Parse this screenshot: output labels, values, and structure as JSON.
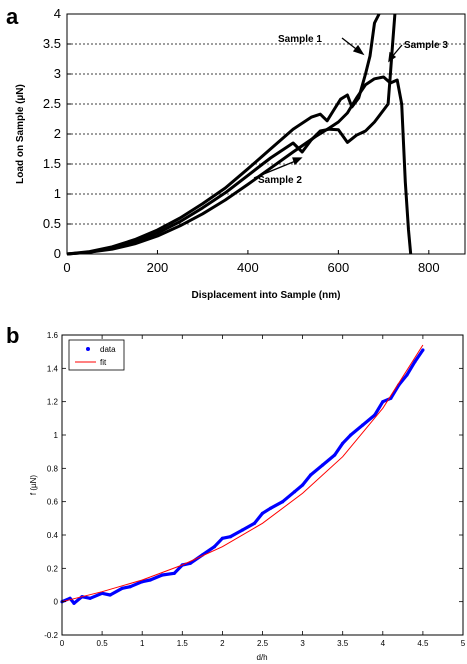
{
  "chart_data": [
    {
      "panel_label": "a",
      "type": "line",
      "xlabel": "Displacement into Sample (nm)",
      "ylabel": "Load on Sample (µN)",
      "xlim": [
        0,
        880
      ],
      "ylim": [
        0,
        4
      ],
      "xticks": [
        "0",
        "200",
        "400",
        "600",
        "800"
      ],
      "yticks": [
        "0",
        "0.5",
        "1",
        "1.5",
        "2",
        "2.5",
        "3",
        "3.5",
        "4"
      ],
      "grid": "horizontal-dotted",
      "series": [
        {
          "name": "Sample 1",
          "x": [
            0,
            50,
            100,
            150,
            200,
            250,
            300,
            350,
            400,
            450,
            500,
            540,
            560,
            575,
            590,
            605,
            620,
            630,
            645,
            660,
            670,
            680,
            690
          ],
          "y": [
            0,
            0.04,
            0.12,
            0.24,
            0.4,
            0.6,
            0.84,
            1.1,
            1.42,
            1.75,
            2.08,
            2.28,
            2.33,
            2.22,
            2.4,
            2.58,
            2.65,
            2.45,
            2.6,
            3.0,
            3.3,
            3.85,
            4.0
          ]
        },
        {
          "name": "Sample 2",
          "x": [
            0,
            50,
            100,
            150,
            200,
            250,
            300,
            350,
            400,
            450,
            500,
            550,
            580,
            600,
            620,
            640,
            660,
            680,
            700,
            715,
            730,
            740,
            748,
            755,
            760
          ],
          "y": [
            0,
            0.03,
            0.08,
            0.17,
            0.3,
            0.47,
            0.67,
            0.9,
            1.16,
            1.43,
            1.7,
            1.96,
            2.1,
            2.2,
            2.35,
            2.6,
            2.82,
            2.92,
            2.95,
            2.85,
            2.9,
            2.5,
            1.2,
            0.4,
            0.0
          ]
        },
        {
          "name": "Sample 3",
          "x": [
            0,
            50,
            100,
            150,
            200,
            250,
            300,
            350,
            400,
            450,
            500,
            520,
            540,
            560,
            580,
            600,
            620,
            640,
            660,
            680,
            700,
            710,
            715,
            720,
            725
          ],
          "y": [
            0,
            0.03,
            0.1,
            0.2,
            0.35,
            0.54,
            0.77,
            1.02,
            1.31,
            1.6,
            1.85,
            1.7,
            1.9,
            2.05,
            2.08,
            2.07,
            1.86,
            1.98,
            2.05,
            2.2,
            2.4,
            2.5,
            3.0,
            3.5,
            4.0
          ]
        }
      ]
    },
    {
      "panel_label": "b",
      "type": "line",
      "xlabel": "d/h",
      "ylabel": "f (µN)",
      "xlim": [
        0,
        5
      ],
      "ylim": [
        -0.2,
        1.6
      ],
      "xticks": [
        "0",
        "0.5",
        "1",
        "1.5",
        "2",
        "2.5",
        "3",
        "3.5",
        "4",
        "4.5",
        "5"
      ],
      "yticks": [
        "-0.2",
        "0",
        "0.2",
        "0.4",
        "0.6",
        "0.8",
        "1",
        "1.2",
        "1.4",
        "1.6"
      ],
      "legend_position": "top-left",
      "series": [
        {
          "name": "data",
          "color": "#0000ff",
          "x": [
            0,
            0.1,
            0.15,
            0.25,
            0.35,
            0.5,
            0.6,
            0.75,
            0.85,
            1.0,
            1.1,
            1.25,
            1.4,
            1.5,
            1.6,
            1.75,
            1.9,
            2.0,
            2.1,
            2.25,
            2.4,
            2.5,
            2.6,
            2.75,
            2.9,
            3.0,
            3.1,
            3.25,
            3.4,
            3.5,
            3.6,
            3.75,
            3.9,
            4.0,
            4.1,
            4.2,
            4.3,
            4.4,
            4.5
          ],
          "y": [
            0.0,
            0.02,
            -0.01,
            0.03,
            0.02,
            0.05,
            0.04,
            0.08,
            0.09,
            0.12,
            0.13,
            0.16,
            0.17,
            0.22,
            0.23,
            0.28,
            0.33,
            0.38,
            0.39,
            0.43,
            0.47,
            0.53,
            0.56,
            0.6,
            0.66,
            0.7,
            0.76,
            0.82,
            0.88,
            0.95,
            1.0,
            1.06,
            1.12,
            1.2,
            1.22,
            1.3,
            1.36,
            1.44,
            1.51
          ]
        },
        {
          "name": "fit",
          "color": "#ff0000",
          "x": [
            0,
            0.5,
            1.0,
            1.5,
            2.0,
            2.5,
            3.0,
            3.5,
            4.0,
            4.5
          ],
          "y": [
            0.0,
            0.06,
            0.13,
            0.22,
            0.33,
            0.47,
            0.65,
            0.87,
            1.16,
            1.54
          ]
        }
      ]
    }
  ],
  "annotations_a": [
    "Sample 1",
    "Sample 2",
    "Sample 3"
  ]
}
